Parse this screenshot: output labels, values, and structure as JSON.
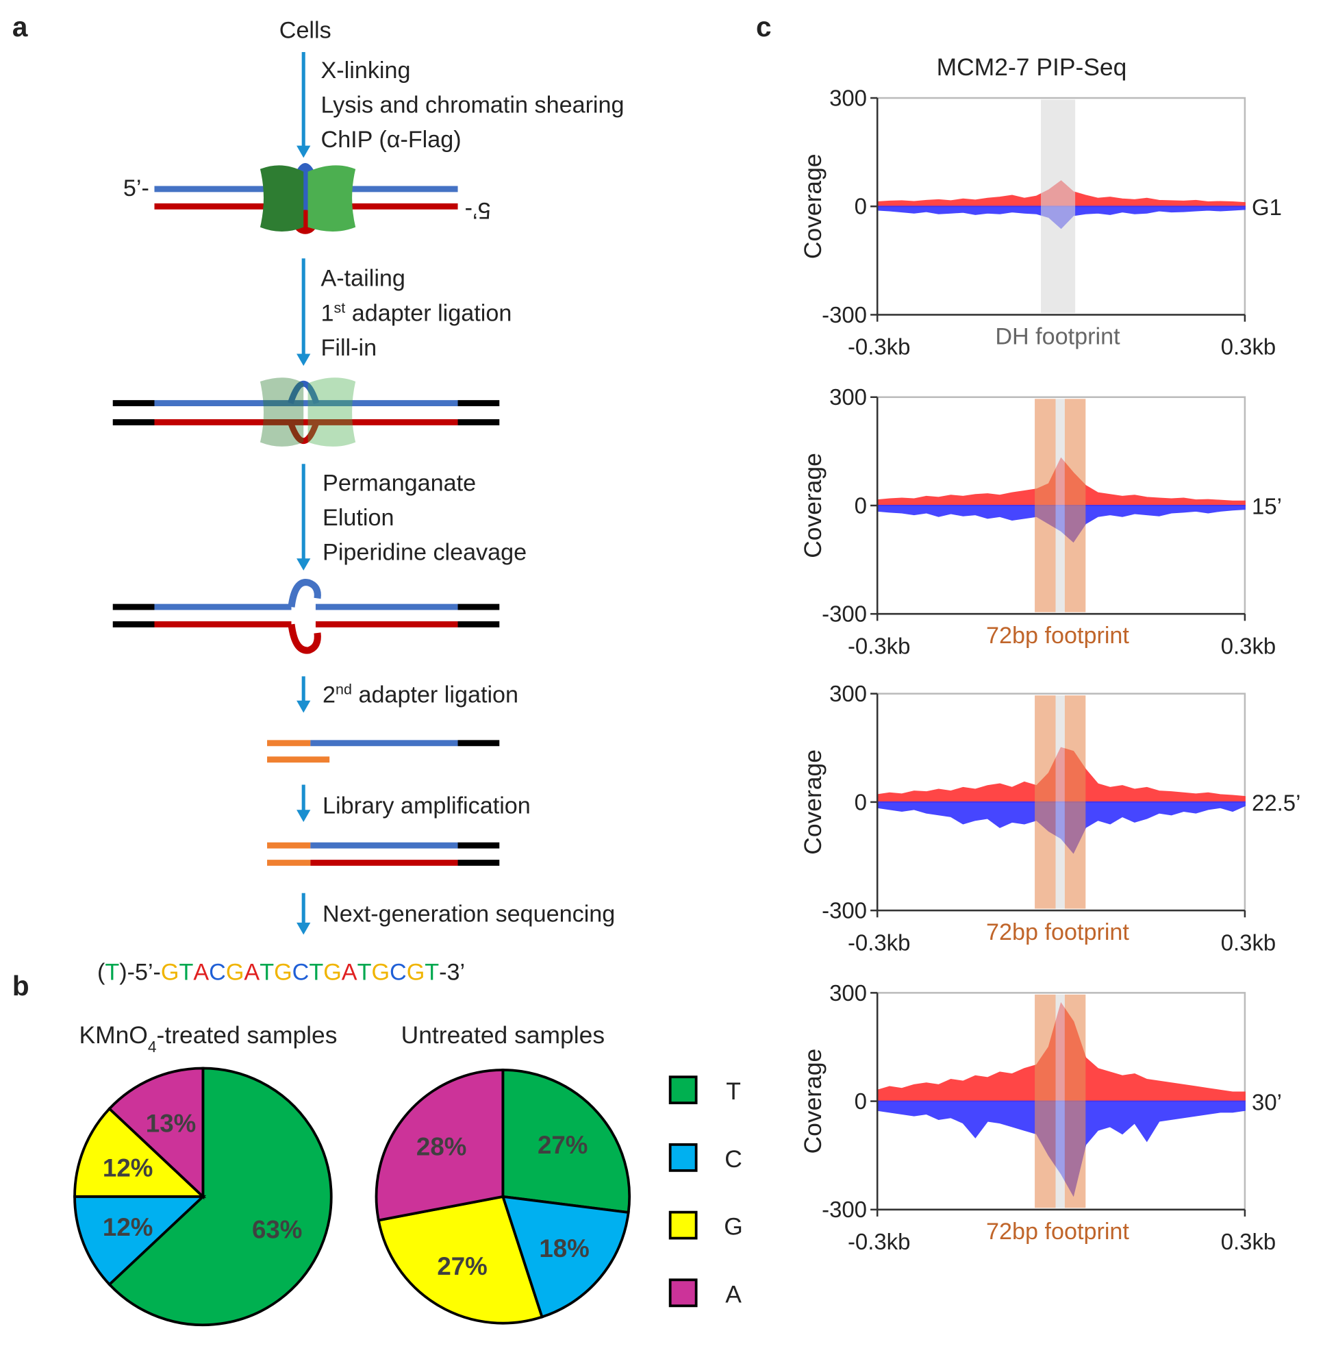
{
  "panel_labels": [
    "a",
    "b",
    "c"
  ],
  "panel_a": {
    "cells": "Cells",
    "strand_top": "5’-",
    "strand_bottom": "5’-",
    "steps": [
      [
        "X-linking",
        "Lysis and chromatin shearing",
        "ChIP (α-Flag)"
      ],
      [
        "A-tailing",
        [
          "1",
          "st",
          " adapter ligation"
        ],
        "Fill-in"
      ],
      [
        "Permanganate",
        "Elution",
        "Piperidine cleavage"
      ],
      [
        [
          "2",
          "nd",
          " adapter ligation"
        ]
      ],
      [
        "Library amplification"
      ],
      [
        "Next-generation sequencing"
      ]
    ],
    "sequence": [
      "(",
      "T",
      ")-5’-",
      "G",
      "T",
      "A",
      "C",
      "G",
      "A",
      "T",
      "G",
      "C",
      "T",
      "G",
      "A",
      "T",
      "G",
      "C",
      "G",
      "T",
      "-3’"
    ],
    "base_colors": {
      "G": "#f0b400",
      "T": "#00a84f",
      "A": "#e02020",
      "C": "#1f5fd6"
    }
  },
  "legend": [
    {
      "label": "T",
      "color": "#00b050"
    },
    {
      "label": "C",
      "color": "#00b0f0"
    },
    {
      "label": "G",
      "color": "#ffff00"
    },
    {
      "label": "A",
      "color": "#cc3399"
    }
  ],
  "chart_data": [
    {
      "type": "pie",
      "title_parts": [
        "KMnO",
        "4",
        "-treated samples"
      ],
      "categories": [
        "T",
        "C",
        "G",
        "A"
      ],
      "values": [
        63,
        12,
        12,
        13
      ],
      "value_labels": [
        "63%",
        "12%",
        "12%",
        "13%"
      ],
      "colors": [
        "#00b050",
        "#00b0f0",
        "#ffff00",
        "#cc3399"
      ]
    },
    {
      "type": "pie",
      "title": "Untreated samples",
      "categories": [
        "T",
        "C",
        "G",
        "A"
      ],
      "values": [
        27,
        18,
        27,
        28
      ],
      "value_labels": [
        "27%",
        "18%",
        "27%",
        "28%"
      ],
      "colors": [
        "#00b050",
        "#00b0f0",
        "#ffff00",
        "#cc3399"
      ]
    },
    {
      "type": "area",
      "title": "MCM2-7 PIP-Seq",
      "ylabel": "Coverage",
      "condition": "G1",
      "footprint_label": "DH footprint",
      "footprint_color": "#666666",
      "bands": [
        {
          "x": [
            -0.033,
            0.023
          ],
          "color": "#d9d9d9"
        }
      ],
      "xlim": [
        -0.3,
        0.3
      ],
      "xticks": [
        {
          "value": -0.3,
          "label": "-0.3kb"
        },
        {
          "value": 0.3,
          "label": "0.3kb"
        }
      ],
      "ylim": [
        -300,
        300
      ],
      "yticks": [
        -300,
        0,
        300
      ],
      "x": [
        -0.3,
        -0.28,
        -0.26,
        -0.24,
        -0.22,
        -0.2,
        -0.18,
        -0.16,
        -0.14,
        -0.12,
        -0.1,
        -0.08,
        -0.06,
        -0.04,
        -0.02,
        0,
        0.02,
        0.04,
        0.06,
        0.08,
        0.1,
        0.12,
        0.14,
        0.16,
        0.18,
        0.2,
        0.22,
        0.24,
        0.26,
        0.28,
        0.3
      ],
      "series": [
        {
          "color": "#ff3333",
          "values": [
            12,
            14,
            15,
            13,
            16,
            18,
            15,
            20,
            17,
            22,
            25,
            30,
            22,
            28,
            45,
            70,
            40,
            30,
            22,
            25,
            20,
            18,
            22,
            16,
            15,
            14,
            16,
            12,
            13,
            12,
            10
          ]
        },
        {
          "color": "#3333ff",
          "values": [
            -10,
            -12,
            -15,
            -18,
            -14,
            -20,
            -18,
            -16,
            -22,
            -18,
            -20,
            -15,
            -18,
            -20,
            -30,
            -60,
            -25,
            -20,
            -18,
            -22,
            -15,
            -20,
            -18,
            -12,
            -15,
            -14,
            -12,
            -10,
            -12,
            -10,
            -8
          ]
        }
      ]
    },
    {
      "type": "area",
      "ylabel": "Coverage",
      "condition": "15’",
      "footprint_label": "72bp footprint",
      "footprint_color": "#c0652a",
      "bands": [
        {
          "x": [
            -0.043,
            -0.009
          ],
          "color": "#e8905a"
        },
        {
          "x": [
            -0.009,
            0.006
          ],
          "color": "#d9d9d9"
        },
        {
          "x": [
            0.006,
            0.04
          ],
          "color": "#e8905a"
        }
      ],
      "xlim": [
        -0.3,
        0.3
      ],
      "xticks": [
        {
          "value": -0.3,
          "label": "-0.3kb"
        },
        {
          "value": 0.3,
          "label": "0.3kb"
        }
      ],
      "ylim": [
        -300,
        300
      ],
      "yticks": [
        -300,
        0,
        300
      ],
      "x": [
        -0.3,
        -0.28,
        -0.26,
        -0.24,
        -0.22,
        -0.2,
        -0.18,
        -0.16,
        -0.14,
        -0.12,
        -0.1,
        -0.08,
        -0.06,
        -0.04,
        -0.02,
        0,
        0.02,
        0.04,
        0.06,
        0.08,
        0.1,
        0.12,
        0.14,
        0.16,
        0.18,
        0.2,
        0.22,
        0.24,
        0.26,
        0.28,
        0.3
      ],
      "series": [
        {
          "color": "#ff3333",
          "values": [
            15,
            18,
            20,
            18,
            25,
            22,
            28,
            25,
            30,
            32,
            28,
            35,
            40,
            45,
            60,
            130,
            90,
            55,
            35,
            30,
            25,
            28,
            22,
            20,
            18,
            20,
            15,
            16,
            14,
            12,
            12
          ]
        },
        {
          "color": "#3333ff",
          "values": [
            -15,
            -18,
            -20,
            -25,
            -20,
            -30,
            -22,
            -28,
            -25,
            -35,
            -30,
            -40,
            -35,
            -30,
            -50,
            -70,
            -100,
            -50,
            -30,
            -25,
            -30,
            -22,
            -25,
            -28,
            -20,
            -18,
            -15,
            -20,
            -15,
            -12,
            -10
          ]
        }
      ]
    },
    {
      "type": "area",
      "ylabel": "Coverage",
      "condition": "22.5’",
      "footprint_label": "72bp footprint",
      "footprint_color": "#c0652a",
      "bands": [
        {
          "x": [
            -0.043,
            -0.009
          ],
          "color": "#e8905a"
        },
        {
          "x": [
            -0.009,
            0.006
          ],
          "color": "#d9d9d9"
        },
        {
          "x": [
            0.006,
            0.04
          ],
          "color": "#e8905a"
        }
      ],
      "xlim": [
        -0.3,
        0.3
      ],
      "xticks": [
        {
          "value": -0.3,
          "label": "-0.3kb"
        },
        {
          "value": 0.3,
          "label": "0.3kb"
        }
      ],
      "ylim": [
        -300,
        300
      ],
      "yticks": [
        -300,
        0,
        300
      ],
      "x": [
        -0.3,
        -0.28,
        -0.26,
        -0.24,
        -0.22,
        -0.2,
        -0.18,
        -0.16,
        -0.14,
        -0.12,
        -0.1,
        -0.08,
        -0.06,
        -0.04,
        -0.02,
        0,
        0.02,
        0.04,
        0.06,
        0.08,
        0.1,
        0.12,
        0.14,
        0.16,
        0.18,
        0.2,
        0.22,
        0.24,
        0.26,
        0.28,
        0.3
      ],
      "series": [
        {
          "color": "#ff3333",
          "values": [
            20,
            25,
            22,
            30,
            28,
            35,
            30,
            40,
            35,
            45,
            50,
            40,
            55,
            45,
            80,
            150,
            140,
            90,
            50,
            40,
            45,
            35,
            40,
            30,
            28,
            25,
            22,
            25,
            20,
            18,
            15
          ]
        },
        {
          "color": "#3333ff",
          "values": [
            -15,
            -20,
            -25,
            -20,
            -30,
            -35,
            -40,
            -60,
            -50,
            -45,
            -70,
            -55,
            -60,
            -50,
            -80,
            -100,
            -140,
            -70,
            -50,
            -60,
            -40,
            -55,
            -45,
            -30,
            -35,
            -25,
            -30,
            -20,
            -15,
            -25,
            -10
          ]
        }
      ]
    },
    {
      "type": "area",
      "ylabel": "Coverage",
      "condition": "30’",
      "footprint_label": "72bp footprint",
      "footprint_color": "#c0652a",
      "bands": [
        {
          "x": [
            -0.043,
            -0.009
          ],
          "color": "#e8905a"
        },
        {
          "x": [
            -0.009,
            0.006
          ],
          "color": "#d9d9d9"
        },
        {
          "x": [
            0.006,
            0.04
          ],
          "color": "#e8905a"
        }
      ],
      "xlim": [
        -0.3,
        0.3
      ],
      "xticks": [
        {
          "value": -0.3,
          "label": "-0.3kb"
        },
        {
          "value": 0.3,
          "label": "0.3kb"
        }
      ],
      "ylim": [
        -300,
        300
      ],
      "yticks": [
        -300,
        0,
        300
      ],
      "x": [
        -0.3,
        -0.28,
        -0.26,
        -0.24,
        -0.22,
        -0.2,
        -0.18,
        -0.16,
        -0.14,
        -0.12,
        -0.1,
        -0.08,
        -0.06,
        -0.04,
        -0.02,
        0,
        0.02,
        0.04,
        0.06,
        0.08,
        0.1,
        0.12,
        0.14,
        0.16,
        0.18,
        0.2,
        0.22,
        0.24,
        0.26,
        0.28,
        0.3
      ],
      "series": [
        {
          "color": "#ff3333",
          "values": [
            30,
            40,
            35,
            45,
            50,
            45,
            60,
            55,
            70,
            65,
            80,
            75,
            90,
            100,
            150,
            270,
            220,
            120,
            90,
            80,
            70,
            75,
            60,
            55,
            50,
            45,
            40,
            35,
            30,
            25,
            25
          ]
        },
        {
          "color": "#3333ff",
          "values": [
            -25,
            -30,
            -35,
            -40,
            -35,
            -50,
            -45,
            -60,
            -100,
            -55,
            -60,
            -70,
            -80,
            -90,
            -150,
            -200,
            -260,
            -120,
            -80,
            -70,
            -90,
            -60,
            -110,
            -55,
            -50,
            -45,
            -40,
            -35,
            -30,
            -30,
            -25
          ]
        }
      ]
    }
  ]
}
